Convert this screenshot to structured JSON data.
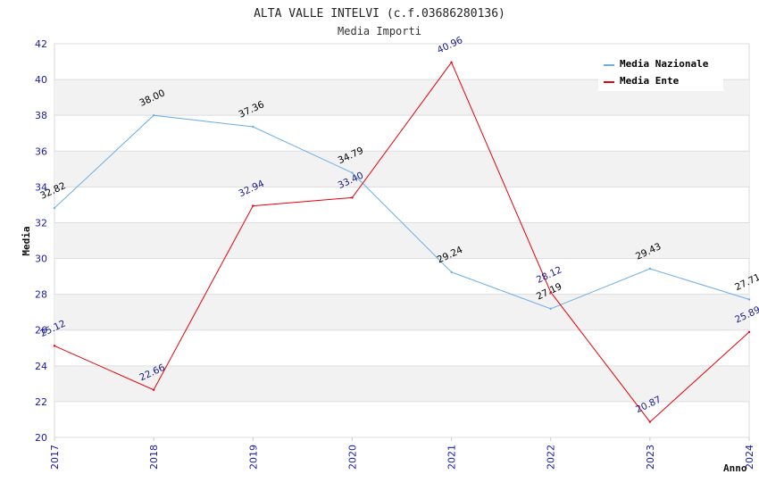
{
  "chart_data": {
    "type": "line",
    "title": "ALTA VALLE INTELVI (c.f.03686280136)",
    "subtitle": "Media Importi",
    "xlabel": "Anno",
    "ylabel": "Media",
    "categories": [
      "2017",
      "2018",
      "2019",
      "2020",
      "2021",
      "2022",
      "2023",
      "2024"
    ],
    "ylim": [
      20,
      42
    ],
    "yticks": [
      20,
      22,
      24,
      26,
      28,
      30,
      32,
      34,
      36,
      38,
      40,
      42
    ],
    "grid": true,
    "legend_position": "top-right",
    "series": [
      {
        "name": "Media Nazionale",
        "color": "#6aaee8",
        "label_color": "#000000",
        "values": [
          32.82,
          38.0,
          37.36,
          34.79,
          29.24,
          27.19,
          29.43,
          27.71
        ],
        "labels": [
          "32.82",
          "38.00",
          "37.36",
          "34.79",
          "29.24",
          "27.19",
          "29.43",
          "27.71"
        ]
      },
      {
        "name": "Media Ente",
        "color": "#e8000b",
        "label_color": "#1a1a8c",
        "values": [
          25.12,
          22.66,
          32.94,
          33.4,
          40.96,
          28.12,
          20.87,
          25.89
        ],
        "labels": [
          "25.12",
          "22.66",
          "32.94",
          "33.40",
          "40.96",
          "28.12",
          "20.87",
          "25.89"
        ]
      }
    ]
  }
}
